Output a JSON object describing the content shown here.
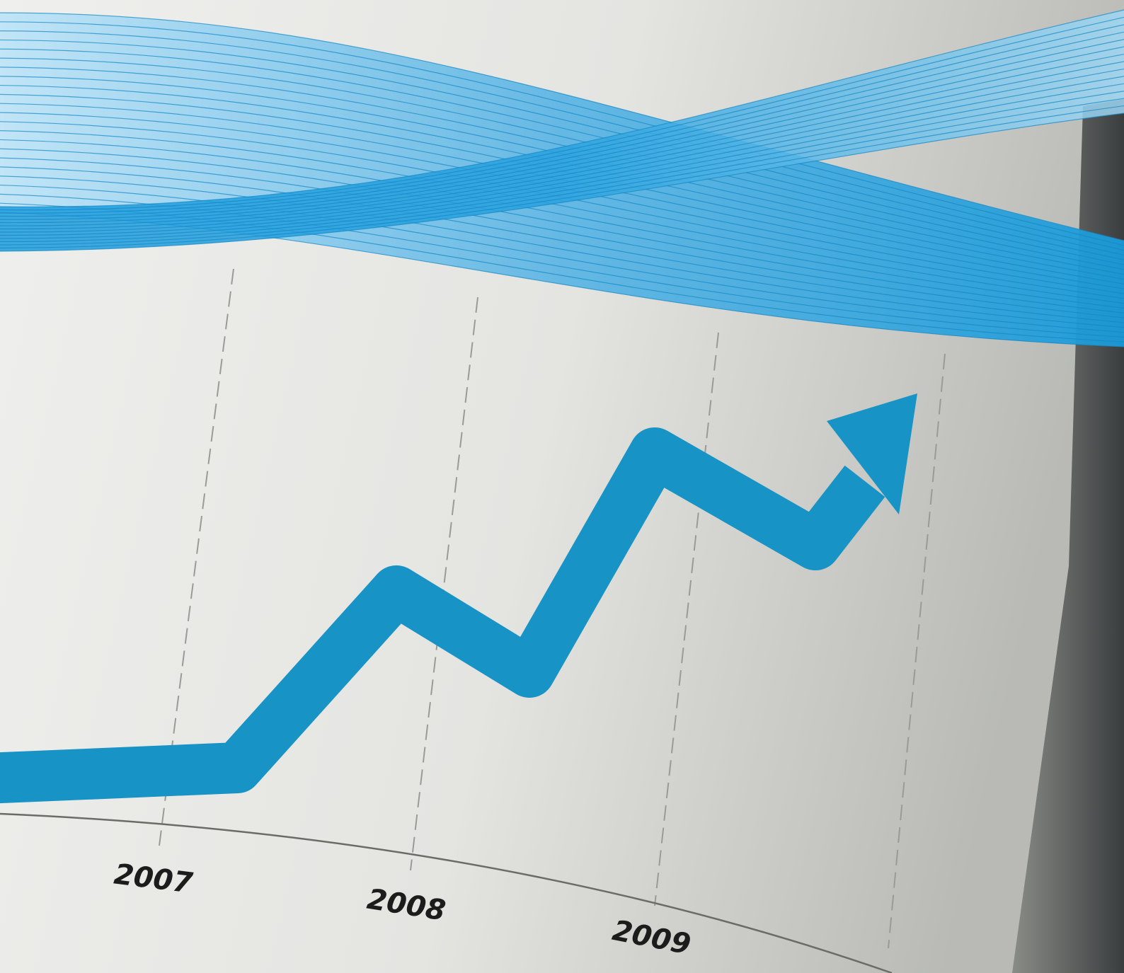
{
  "year_labels": [
    "2007",
    "2008",
    "2009"
  ]
}
